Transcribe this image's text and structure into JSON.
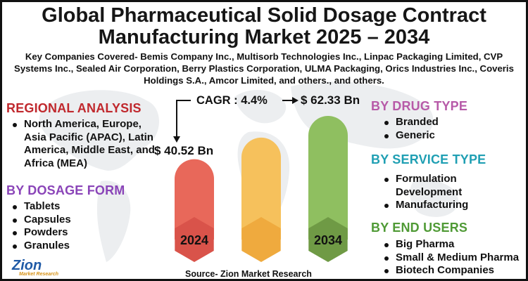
{
  "title_line1": "Global Pharmaceutical Solid Dosage Contract",
  "title_line2": "Manufacturing Market 2025 – 2034",
  "key_companies": "Key Companies Covered- Bemis Company Inc., Multisorb Technologies Inc., Linpac Packaging Limited, CVP Systems Inc., Sealed Air Corporation, Berry Plastics Corporation, ULMA Packaging, Orics Industries Inc., Coveris Holdings S.A., Amcor Limited, and others., and others.",
  "cagr_text": "CAGR : 4.4%",
  "source": "Source- Zion Market Research",
  "logo": {
    "name": "Zion",
    "sub": "Market Research"
  },
  "regional": {
    "heading": "REGIONAL ANALYSIS",
    "heading_color": "#c0282d",
    "items": [
      "North America, Europe, Asia Pacific (APAC), Latin America, Middle East, and Africa (MEA)"
    ]
  },
  "dosage_form": {
    "heading": "BY DOSAGE FORM",
    "heading_color": "#8a44b8",
    "items": [
      "Tablets",
      "Capsules",
      "Powders",
      "Granules"
    ]
  },
  "drug_type": {
    "heading": "BY DRUG TYPE",
    "heading_color": "#b75aa8",
    "items": [
      "Branded",
      "Generic"
    ]
  },
  "service_type": {
    "heading": "BY SERVICE TYPE",
    "heading_color": "#1f9fb3",
    "items": [
      "Formulation Development",
      "Manufacturing"
    ]
  },
  "end_users": {
    "heading": "BY END USERS",
    "heading_color": "#4f9a35",
    "items": [
      "Big Pharma",
      "Small & Medium Pharma",
      "Biotech Companies"
    ]
  },
  "chart_data": {
    "type": "bar",
    "categories": [
      "2024",
      "",
      "2034"
    ],
    "value_labels": [
      "$ 40.52 Bn",
      "",
      "$ 62.33 Bn"
    ],
    "values": [
      40.52,
      51.4,
      62.33
    ],
    "colors": [
      "#e8685a",
      "#f6c15c",
      "#8fbf60"
    ],
    "hex_colors": [
      "#d9534a",
      "#efaa3e",
      "#6f9a45"
    ],
    "ylim": [
      0,
      70
    ],
    "annotation": "CAGR : 4.4%"
  }
}
